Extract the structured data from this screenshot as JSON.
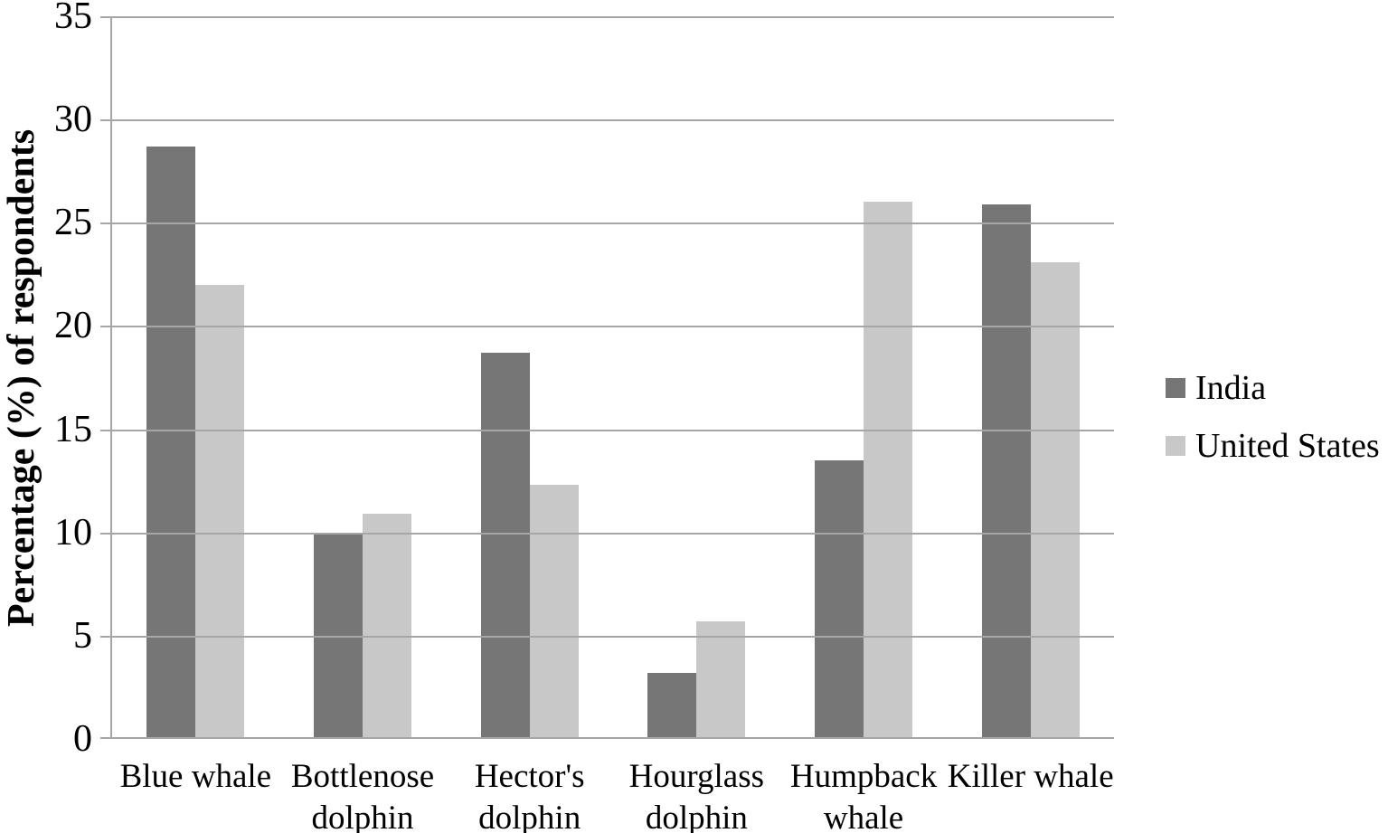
{
  "chart_data": {
    "type": "bar",
    "title": "",
    "xlabel": "",
    "ylabel": "Percentage (%) of respondents",
    "categories": [
      "Blue whale",
      "Bottlenose dolphin",
      "Hector's dolphin",
      "Hourglass dolphin",
      "Humpback whale",
      "Killer whale"
    ],
    "category_label_lines": [
      [
        "Blue whale"
      ],
      [
        "Bottlenose",
        "dolphin"
      ],
      [
        "Hector's",
        "dolphin"
      ],
      [
        "Hourglass",
        "dolphin"
      ],
      [
        "Humpback",
        "whale"
      ],
      [
        "Killer whale"
      ]
    ],
    "series": [
      {
        "name": "India",
        "color": "#767676",
        "values": [
          28.7,
          10.0,
          18.7,
          3.2,
          13.5,
          25.9
        ]
      },
      {
        "name": "United States",
        "color": "#c8c8c8",
        "values": [
          22.0,
          10.9,
          12.3,
          5.7,
          26.0,
          23.1
        ]
      }
    ],
    "ylim": [
      0,
      35
    ],
    "yticks": [
      0,
      5,
      10,
      15,
      20,
      25,
      30,
      35
    ],
    "grid": true,
    "legend_position": "right",
    "colors": {
      "gridline": "#a6a6a6",
      "axis": "#a6a6a6",
      "text": "#000000"
    }
  }
}
